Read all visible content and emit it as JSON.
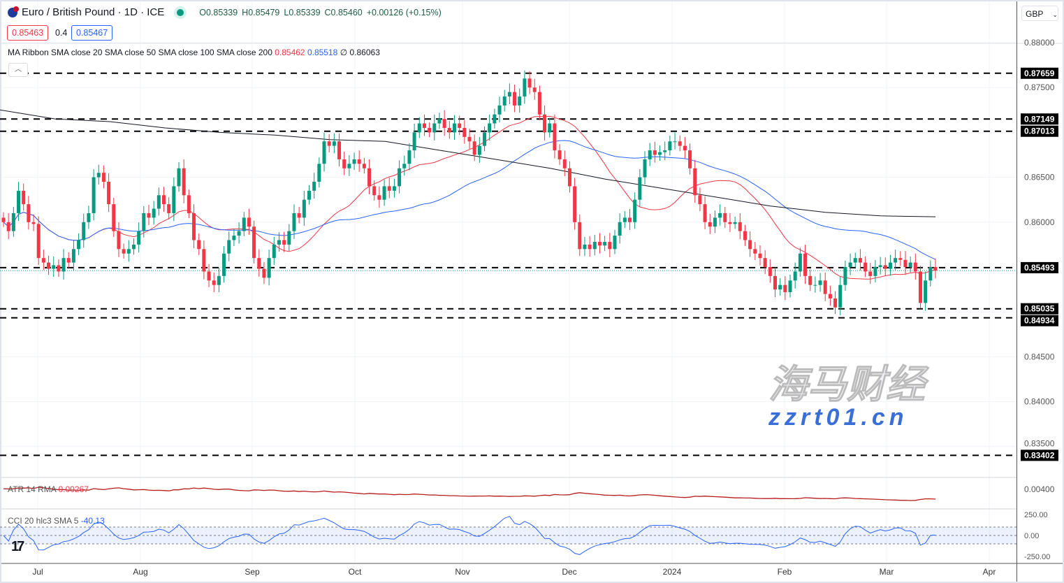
{
  "header": {
    "symbol": "Euro / British Pound · 1D · ICE",
    "open": "O0.85339",
    "high": "H0.85479",
    "low": "L0.85339",
    "close": "C0.85460",
    "change": "+0.00126 (+0.15%)",
    "sell_price": "0.85463",
    "spread": "0.4",
    "buy_price": "0.85467"
  },
  "ma_ribbon": {
    "label": "MA Ribbon SMA close 20 SMA close 50 SMA close 100 SMA close 200",
    "v1": "0.85462",
    "v2": "0.85518",
    "v3": "∅",
    "v4": "0.86063"
  },
  "currency": "GBP",
  "currency_icon": "chevron-down-icon",
  "atr": {
    "label": "ATR 14 RMA",
    "value": "0.00267"
  },
  "cci": {
    "label": "CCI 20 hlc3 SMA 5",
    "value": "-40.13"
  },
  "colors": {
    "up": "#089981",
    "down": "#f23645",
    "sma20": "#f23645",
    "sma50": "#2962ff",
    "sma200": "#131722",
    "atr": "#b71c1c",
    "cci": "#2962ff"
  },
  "watermark": {
    "line1": "海马财经",
    "line2": "zzrt01.cn"
  },
  "price_axis": {
    "ticks": [
      "0.88000",
      "0.87500",
      "0.86500",
      "0.86000",
      "0.84500",
      "0.84000",
      "0.83500"
    ],
    "atr_tick": "0.00400",
    "cci_ticks": [
      "250.00",
      "0.00",
      "-250.00"
    ]
  },
  "time_axis": [
    "Jul",
    "Aug",
    "Sep",
    "Oct",
    "Nov",
    "Dec",
    "2024",
    "Feb",
    "Mar",
    "Apr"
  ],
  "levels": [
    "0.87659",
    "0.87149",
    "0.87013",
    "0.85493",
    "0.85035",
    "0.84934",
    "0.83402"
  ],
  "chart_data": {
    "type": "candlestick",
    "closes": [
      0.86,
      0.859,
      0.861,
      0.8635,
      0.862,
      0.86,
      0.8598,
      0.856,
      0.8555,
      0.8548,
      0.8552,
      0.8545,
      0.856,
      0.8555,
      0.857,
      0.858,
      0.86,
      0.861,
      0.865,
      0.8655,
      0.8645,
      0.862,
      0.859,
      0.857,
      0.8565,
      0.857,
      0.8575,
      0.859,
      0.861,
      0.8605,
      0.8615,
      0.863,
      0.862,
      0.861,
      0.864,
      0.866,
      0.863,
      0.861,
      0.858,
      0.857,
      0.8545,
      0.8535,
      0.853,
      0.854,
      0.8565,
      0.858,
      0.8585,
      0.859,
      0.8605,
      0.8595,
      0.856,
      0.8548,
      0.8538,
      0.856,
      0.8575,
      0.858,
      0.8575,
      0.859,
      0.861,
      0.8605,
      0.8625,
      0.8635,
      0.8645,
      0.8665,
      0.869,
      0.8685,
      0.869,
      0.867,
      0.866,
      0.8665,
      0.867,
      0.8665,
      0.866,
      0.864,
      0.863,
      0.8625,
      0.864,
      0.8635,
      0.864,
      0.866,
      0.8665,
      0.868,
      0.87,
      0.871,
      0.8705,
      0.87,
      0.871,
      0.8715,
      0.8705,
      0.87,
      0.871,
      0.8705,
      0.8695,
      0.869,
      0.8675,
      0.8685,
      0.87,
      0.871,
      0.872,
      0.873,
      0.874,
      0.8745,
      0.873,
      0.874,
      0.876,
      0.875,
      0.8745,
      0.872,
      0.87,
      0.871,
      0.868,
      0.867,
      0.866,
      0.864,
      0.86,
      0.857,
      0.8575,
      0.857,
      0.8578,
      0.8574,
      0.8578,
      0.857,
      0.8585,
      0.86,
      0.8605,
      0.86,
      0.8625,
      0.865,
      0.867,
      0.868,
      0.8675,
      0.8678,
      0.868,
      0.869,
      0.869,
      0.8685,
      0.868,
      0.866,
      0.863,
      0.862,
      0.86,
      0.8595,
      0.8605,
      0.861,
      0.86,
      0.8598,
      0.86,
      0.859,
      0.858,
      0.857,
      0.8565,
      0.856,
      0.855,
      0.854,
      0.8525,
      0.853,
      0.8522,
      0.8535,
      0.8545,
      0.8565,
      0.854,
      0.853,
      0.853,
      0.8535,
      0.852,
      0.8515,
      0.8505,
      0.853,
      0.855,
      0.8555,
      0.856,
      0.8555,
      0.8545,
      0.854,
      0.855,
      0.8552,
      0.8548,
      0.8555,
      0.856,
      0.8558,
      0.855,
      0.8555,
      0.8545,
      0.851,
      0.8535,
      0.855,
      0.8546
    ],
    "sma200": [
      0.8725,
      0.8715,
      0.8712,
      0.8705,
      0.87,
      0.8697,
      0.8692,
      0.869,
      0.868,
      0.867,
      0.866,
      0.8648,
      0.8638,
      0.8628,
      0.8618,
      0.8611,
      0.8607,
      0.8606
    ],
    "current_price": 0.8546,
    "ylim": [
      0.8305,
      0.8825
    ]
  }
}
